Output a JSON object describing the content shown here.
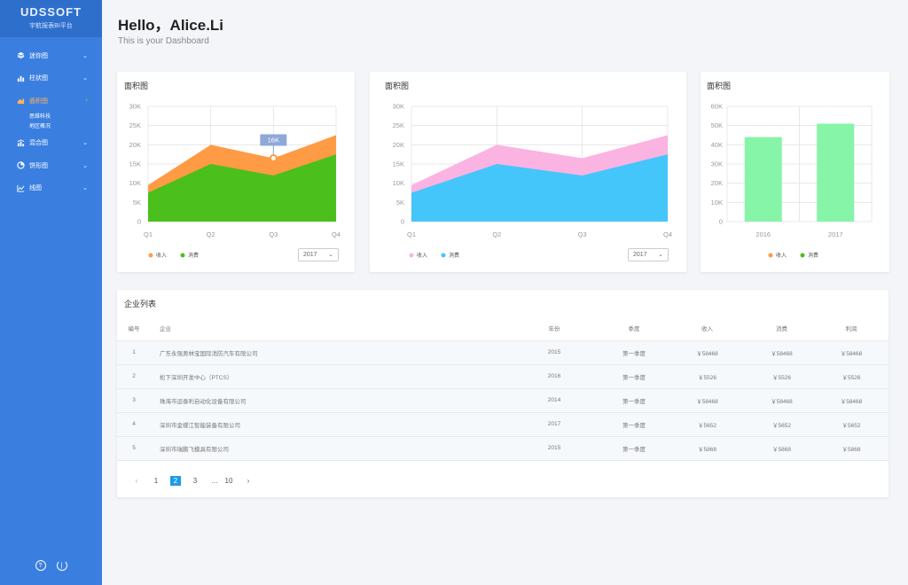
{
  "sidebar": {
    "logo": "UDSSOFT",
    "subtitle": "宇航报表BI平台",
    "items": [
      {
        "label": "迷你图",
        "icon": "cube-icon"
      },
      {
        "label": "柱状图",
        "icon": "bar-chart-icon"
      },
      {
        "label": "面积图",
        "icon": "area-chart-icon",
        "active": true
      },
      {
        "label": "混合图",
        "icon": "mixed-chart-icon"
      },
      {
        "label": "饼形图",
        "icon": "pie-chart-icon"
      },
      {
        "label": "线图",
        "icon": "line-chart-icon"
      }
    ],
    "subitems": [
      "思维科技",
      "地区概况"
    ],
    "active_color": "#ffb35a"
  },
  "header": {
    "greeting": "Hello，Alice.Li",
    "subtitle": "This is your Dashboard"
  },
  "cards": [
    {
      "title": "面积图",
      "legend": [
        "收入",
        "消费"
      ],
      "select": "2017",
      "tooltip": "16K"
    },
    {
      "title": "面积图",
      "legend": [
        "收入",
        "消费"
      ],
      "select": "2017"
    },
    {
      "title": "面积图",
      "legend": [
        "收入",
        "消费"
      ]
    }
  ],
  "chart_data": [
    {
      "type": "area",
      "title": "面积图",
      "categories": [
        "Q1",
        "Q2",
        "Q3",
        "Q4"
      ],
      "series": [
        {
          "name": "收入",
          "values": [
            9500,
            20000,
            16500,
            22500
          ],
          "color": "#ff9a45"
        },
        {
          "name": "消费",
          "values": [
            7500,
            15000,
            12000,
            17500
          ],
          "color": "#4bbf1c"
        }
      ],
      "ylim": [
        0,
        30000
      ],
      "yticks": [
        "0",
        "5K",
        "10K",
        "15K",
        "20K",
        "25K",
        "30K"
      ],
      "tooltip": {
        "category": "Q3",
        "label": "16K"
      }
    },
    {
      "type": "area",
      "title": "面积图",
      "categories": [
        "Q1",
        "Q2",
        "Q3",
        "Q4"
      ],
      "series": [
        {
          "name": "收入",
          "values": [
            9500,
            20000,
            16500,
            22500
          ],
          "color": "#fbb3e2"
        },
        {
          "name": "消费",
          "values": [
            7500,
            15000,
            12000,
            17500
          ],
          "color": "#45c6fb"
        }
      ],
      "ylim": [
        0,
        30000
      ],
      "yticks": [
        "0",
        "5K",
        "10K",
        "15K",
        "20K",
        "25K",
        "30K"
      ]
    },
    {
      "type": "bar",
      "title": "面积图",
      "categories": [
        "2016",
        "2017"
      ],
      "values": [
        44000,
        51000
      ],
      "color": "#86f5a8",
      "ylim": [
        0,
        60000
      ],
      "yticks": [
        "0",
        "10K",
        "20K",
        "30K",
        "40K",
        "50K",
        "60K"
      ],
      "legend_colors": [
        "#ff9a45",
        "#4bbf1c"
      ]
    }
  ],
  "table": {
    "title": "企业列表",
    "headers": [
      "编号",
      "企业",
      "年份",
      "季度",
      "收入",
      "消费",
      "利润"
    ],
    "rows": [
      [
        "1",
        "广东永强奥林宝国际消防汽车有限公司",
        "2015",
        "第一季度",
        "￥58468",
        "￥58468",
        "￥58468"
      ],
      [
        "2",
        "松下深圳开发中心（PTCS）",
        "2016",
        "第一季度",
        "￥5526",
        "￥5526",
        "￥5526"
      ],
      [
        "3",
        "珠海市运泰利自动化设备有限公司",
        "2014",
        "第一季度",
        "￥58468",
        "￥58468",
        "￥58468"
      ],
      [
        "4",
        "深圳市金蝶江智能装备有限公司",
        "2017",
        "第一季度",
        "￥5652",
        "￥5652",
        "￥5652"
      ],
      [
        "5",
        "深圳市瑞鹏飞模具有限公司",
        "2015",
        "第一季度",
        "￥5868",
        "￥5868",
        "￥5868"
      ]
    ]
  },
  "pagination": {
    "prev": "‹",
    "pages": [
      "1",
      "2",
      "3",
      "...",
      "10"
    ],
    "current": "2",
    "next": "›"
  }
}
